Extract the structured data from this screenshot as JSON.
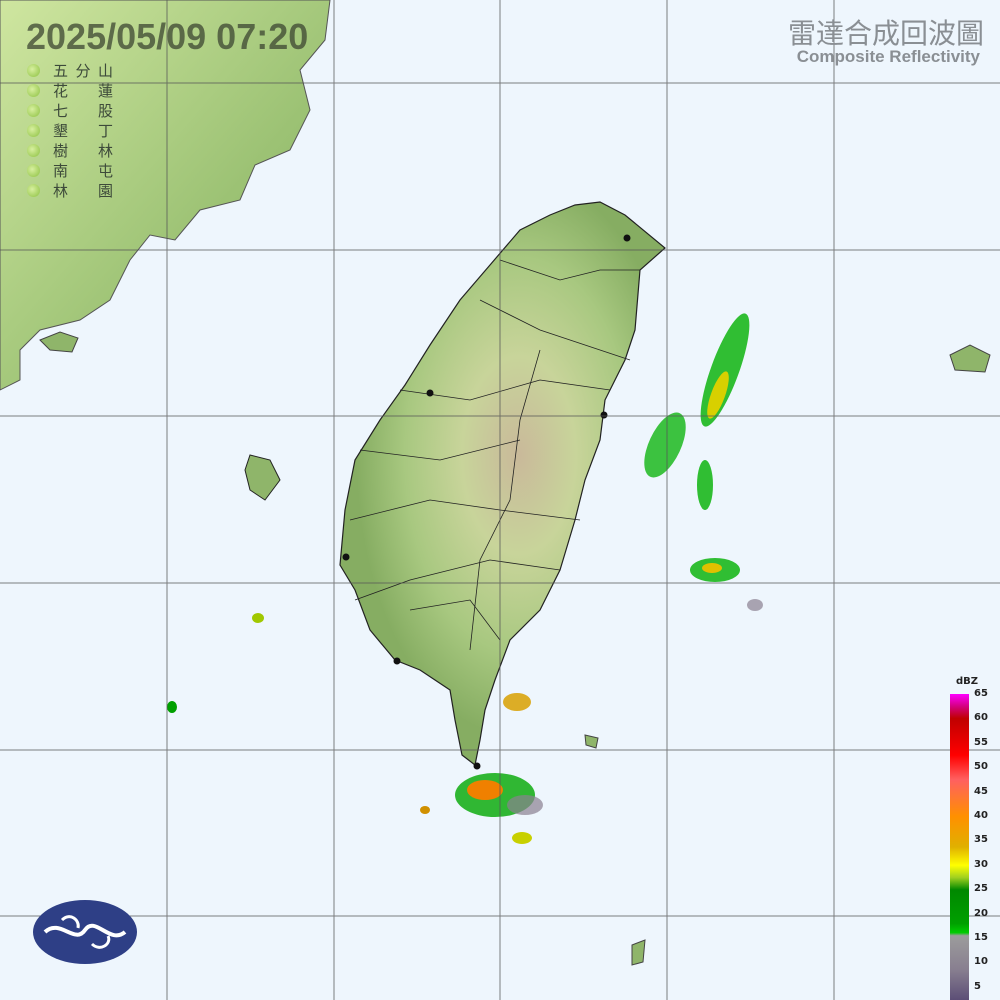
{
  "header": {
    "datetime": "2025/05/09  07:20",
    "title_zh": "雷達合成回波圖",
    "title_en": "Composite Reflectivity"
  },
  "stations": [
    {
      "chars": [
        "五",
        "分",
        "山"
      ]
    },
    {
      "chars": [
        "花",
        "",
        "蓮"
      ]
    },
    {
      "chars": [
        "七",
        "",
        "股"
      ]
    },
    {
      "chars": [
        "墾",
        "",
        "丁"
      ]
    },
    {
      "chars": [
        "樹",
        "",
        "林"
      ]
    },
    {
      "chars": [
        "南",
        "",
        "屯"
      ]
    },
    {
      "chars": [
        "林",
        "",
        "園"
      ]
    }
  ],
  "colorbar": {
    "unit": "dBZ",
    "ticks": [
      "65",
      "60",
      "55",
      "50",
      "45",
      "40",
      "35",
      "30",
      "25",
      "20",
      "15",
      "10",
      "5"
    ]
  },
  "colors": {
    "sea": "#eef6fd",
    "land": "#8fb56a",
    "grid": "#555555"
  }
}
